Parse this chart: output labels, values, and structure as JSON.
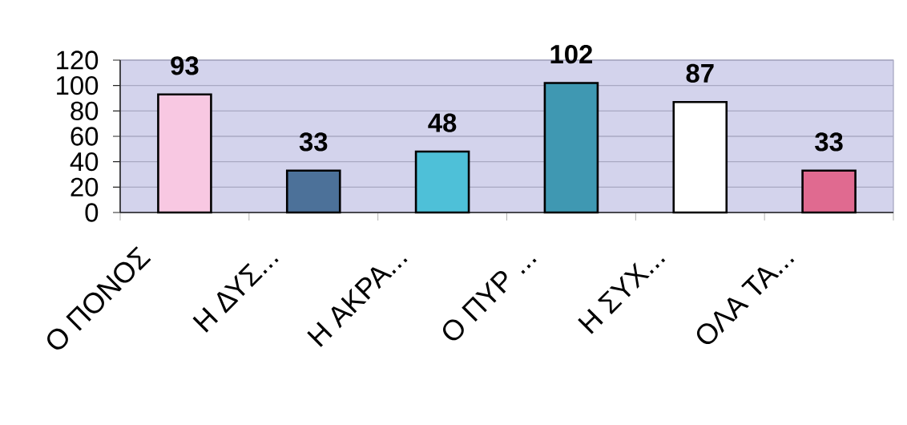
{
  "chart_data": {
    "type": "bar",
    "categories": [
      "Ο ΠΟΝΟΣ",
      "Η ΔΥΣ...",
      "Η ΑΚΡΑ...",
      "Ο ΠΥΡ ...",
      "Η ΣΥΧ...",
      "ΟΛΑ ΤΑ..."
    ],
    "values": [
      93,
      33,
      48,
      102,
      87,
      33
    ],
    "colors": [
      "#f8c8e2",
      "#4c7199",
      "#4ec0d8",
      "#3f98b2",
      "#ffffff",
      "#e06a90"
    ],
    "ylim": [
      0,
      120
    ],
    "yticks": [
      0,
      20,
      40,
      60,
      80,
      100,
      120
    ],
    "grid": "y",
    "data_labels": true
  }
}
